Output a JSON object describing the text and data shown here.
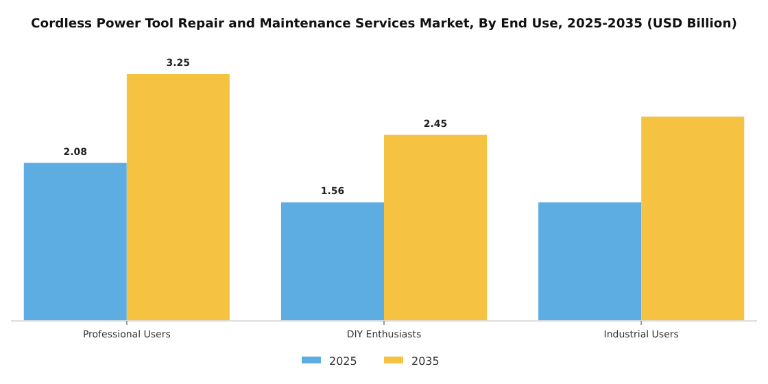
{
  "chart_data": {
    "type": "bar",
    "title": "Cordless Power Tool Repair and Maintenance Services Market, By End Use, 2025-2035 (USD Billion)",
    "categories": [
      "Professional Users",
      "DIY Enthusiasts",
      "Industrial Users"
    ],
    "series": [
      {
        "name": "2025",
        "color": "#5dade2",
        "values": [
          2.08,
          1.56,
          1.56
        ],
        "value_labels": [
          "2.08",
          "1.56",
          null
        ]
      },
      {
        "name": "2035",
        "color": "#f5c242",
        "values": [
          3.25,
          2.45,
          2.69
        ],
        "value_labels": [
          "3.25",
          "2.45",
          null
        ]
      }
    ],
    "legend": "bottom",
    "grid": false
  }
}
